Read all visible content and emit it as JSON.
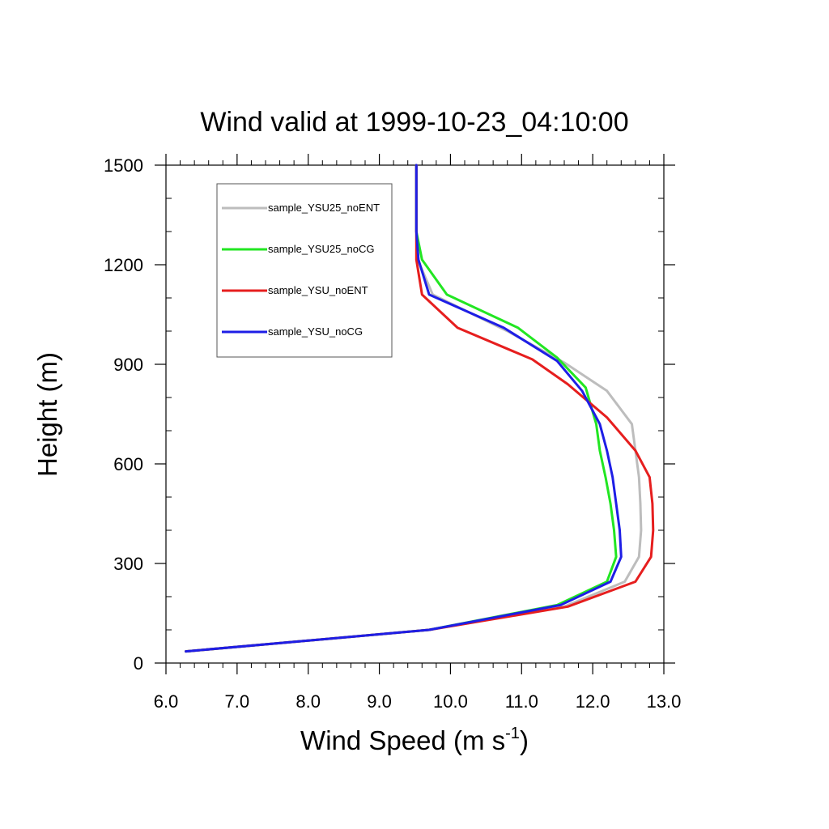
{
  "chart_data": {
    "type": "line",
    "title": "Wind valid at 1999-10-23_04:10:00",
    "xlabel": "Wind Speed (m s",
    "xlabel_sup": "-1",
    "xlabel_end": ")",
    "ylabel": "Height (m)",
    "xlim": [
      6.0,
      13.0
    ],
    "ylim": [
      0,
      1500
    ],
    "x_ticks": [
      6.0,
      7.0,
      8.0,
      9.0,
      10.0,
      11.0,
      12.0,
      13.0
    ],
    "x_tick_labels": [
      "6.0",
      "7.0",
      "8.0",
      "9.0",
      "10.0",
      "11.0",
      "12.0",
      "13.0"
    ],
    "y_ticks": [
      0,
      300,
      600,
      900,
      1200,
      1500
    ],
    "y_tick_labels": [
      "0",
      "300",
      "600",
      "900",
      "1200",
      "1500"
    ],
    "grid": false,
    "legend_position": "top-left",
    "series": [
      {
        "name": "sample_YSU25_noENT",
        "color": "#bdbdbd",
        "points": [
          [
            6.28,
            35
          ],
          [
            9.7,
            100
          ],
          [
            11.6,
            170
          ],
          [
            12.45,
            245
          ],
          [
            12.65,
            320
          ],
          [
            12.68,
            400
          ],
          [
            12.67,
            480
          ],
          [
            12.65,
            560
          ],
          [
            12.6,
            640
          ],
          [
            12.55,
            720
          ],
          [
            12.2,
            820
          ],
          [
            11.6,
            905
          ],
          [
            10.8,
            1000
          ],
          [
            9.75,
            1110
          ],
          [
            9.55,
            1210
          ],
          [
            9.52,
            1300
          ],
          [
            9.52,
            1400
          ],
          [
            9.52,
            1500
          ]
        ]
      },
      {
        "name": "sample_YSU25_noCG",
        "color": "#22e622",
        "points": [
          [
            6.28,
            35
          ],
          [
            9.7,
            100
          ],
          [
            11.5,
            175
          ],
          [
            12.2,
            245
          ],
          [
            12.33,
            320
          ],
          [
            12.3,
            400
          ],
          [
            12.25,
            480
          ],
          [
            12.18,
            560
          ],
          [
            12.1,
            640
          ],
          [
            12.05,
            720
          ],
          [
            11.9,
            830
          ],
          [
            11.5,
            920
          ],
          [
            10.95,
            1010
          ],
          [
            9.95,
            1110
          ],
          [
            9.6,
            1215
          ],
          [
            9.52,
            1300
          ],
          [
            9.52,
            1400
          ],
          [
            9.52,
            1500
          ]
        ]
      },
      {
        "name": "sample_YSU_noENT",
        "color": "#e61e1e",
        "points": [
          [
            6.28,
            35
          ],
          [
            9.7,
            100
          ],
          [
            11.65,
            170
          ],
          [
            12.6,
            245
          ],
          [
            12.82,
            320
          ],
          [
            12.85,
            400
          ],
          [
            12.84,
            480
          ],
          [
            12.8,
            560
          ],
          [
            12.6,
            640
          ],
          [
            12.2,
            740
          ],
          [
            11.65,
            840
          ],
          [
            11.15,
            915
          ],
          [
            10.1,
            1010
          ],
          [
            9.6,
            1110
          ],
          [
            9.52,
            1215
          ],
          [
            9.52,
            1300
          ],
          [
            9.52,
            1400
          ],
          [
            9.52,
            1500
          ]
        ]
      },
      {
        "name": "sample_YSU_noCG",
        "color": "#1e1ee6",
        "points": [
          [
            6.28,
            35
          ],
          [
            9.7,
            100
          ],
          [
            11.55,
            175
          ],
          [
            12.25,
            245
          ],
          [
            12.4,
            320
          ],
          [
            12.38,
            400
          ],
          [
            12.33,
            480
          ],
          [
            12.28,
            560
          ],
          [
            12.2,
            640
          ],
          [
            12.1,
            720
          ],
          [
            11.85,
            820
          ],
          [
            11.5,
            910
          ],
          [
            10.75,
            1010
          ],
          [
            9.7,
            1110
          ],
          [
            9.55,
            1215
          ],
          [
            9.52,
            1300
          ],
          [
            9.52,
            1400
          ],
          [
            9.52,
            1500
          ]
        ]
      }
    ]
  }
}
